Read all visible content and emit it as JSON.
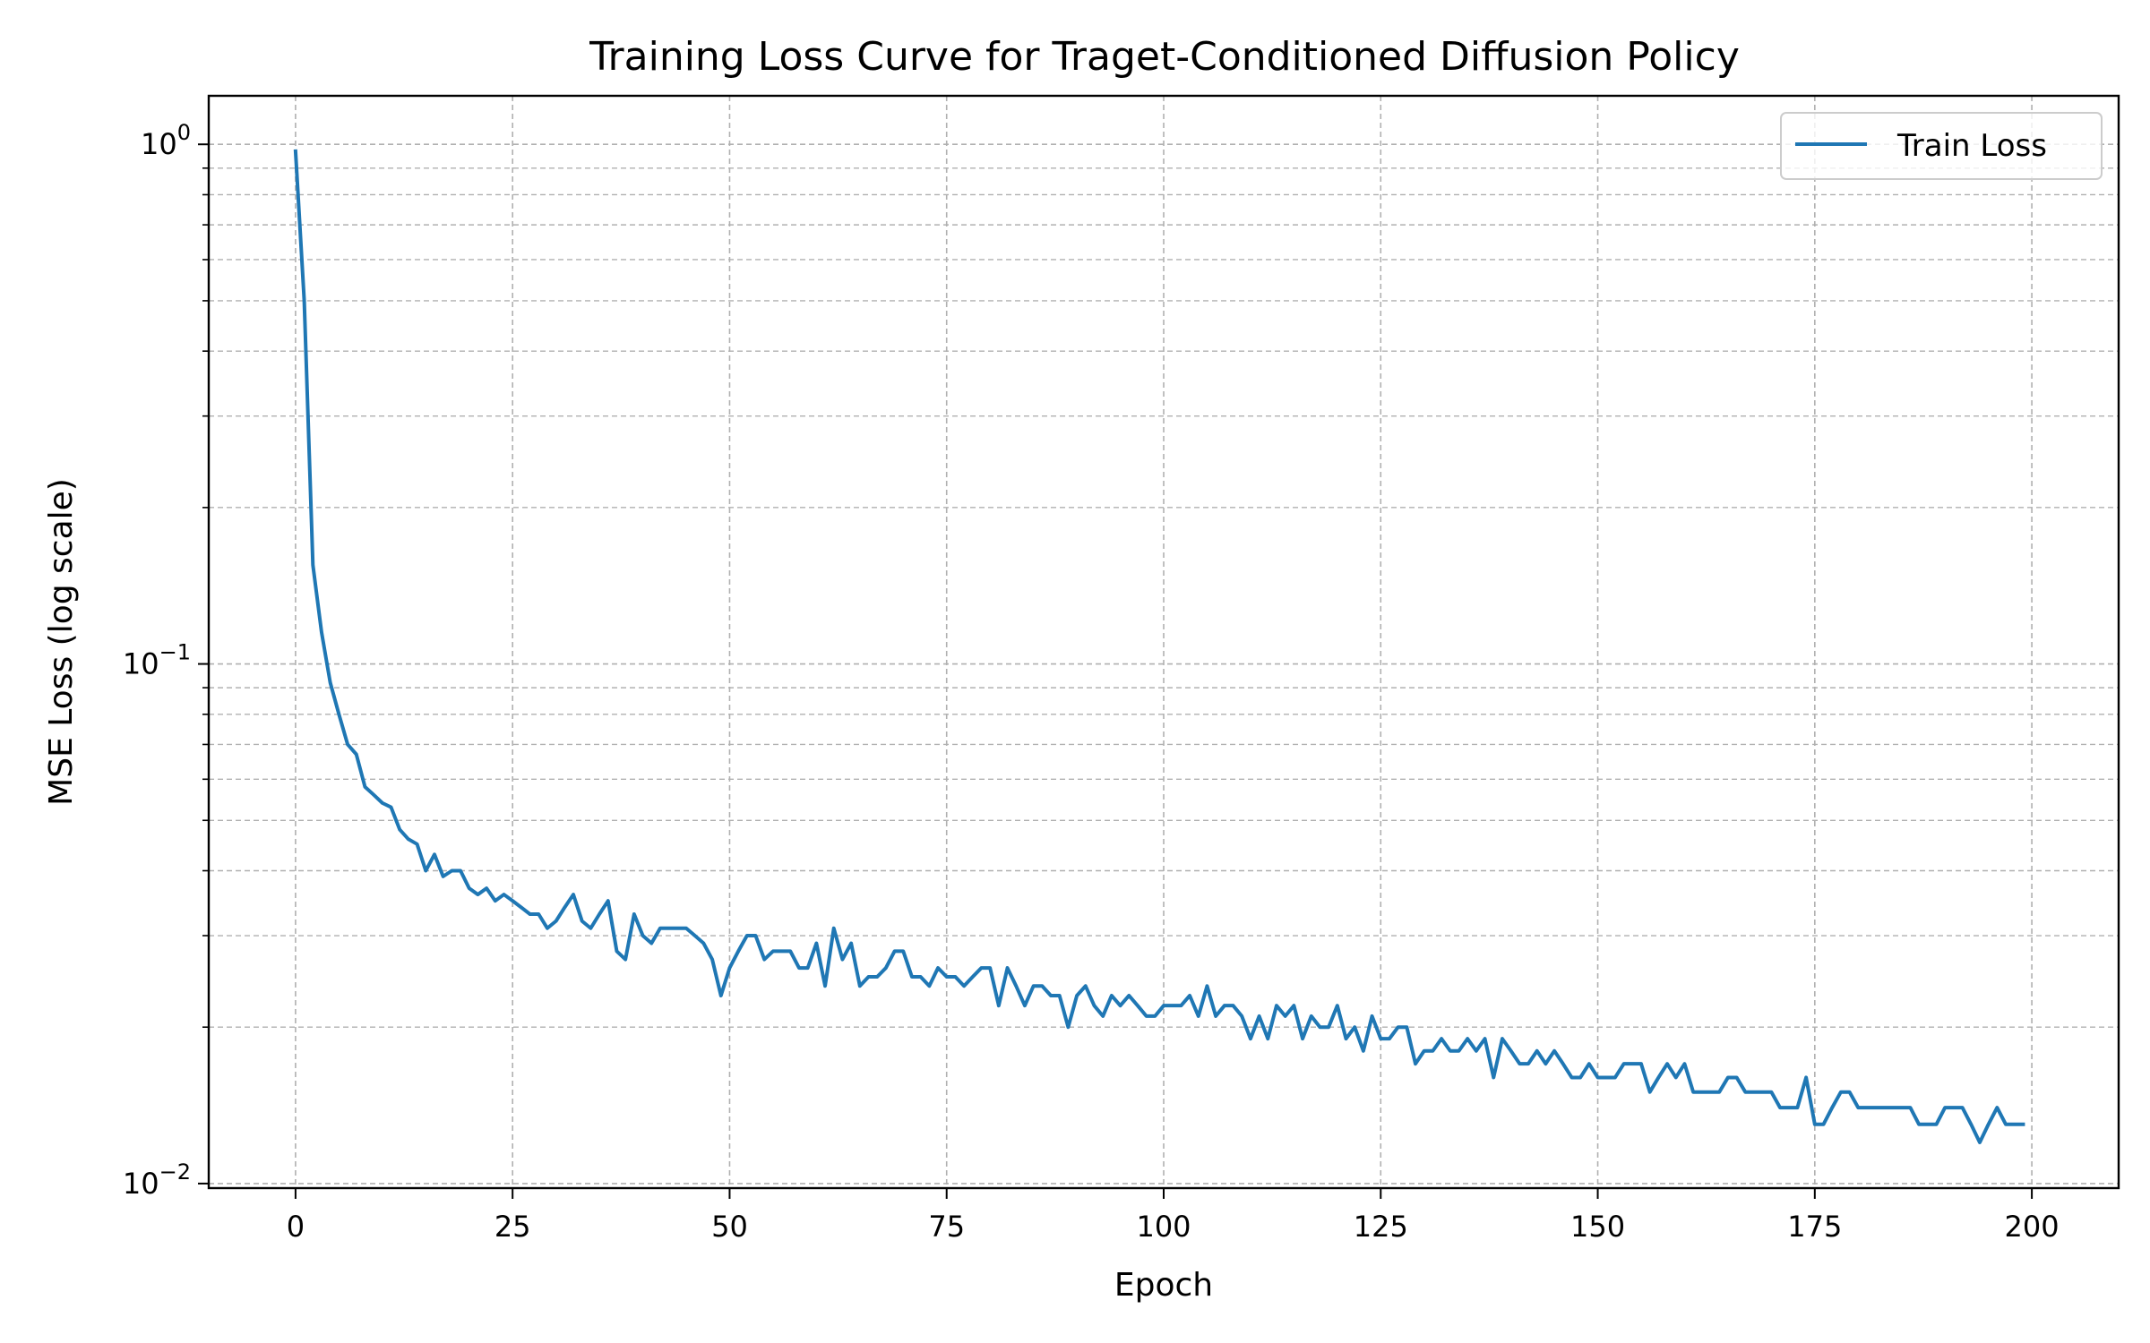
{
  "chart_data": {
    "type": "line",
    "title": "Training Loss Curve for Traget-Conditioned Diffusion Policy",
    "xlabel": "Epoch",
    "ylabel": "MSE Loss (log scale)",
    "xlim": [
      -10,
      210
    ],
    "ylim": [
      0.0098,
      1.24
    ],
    "yscale": "log",
    "grid": true,
    "grid_minor": true,
    "legend_position": "top-right",
    "x_ticks": [
      0,
      25,
      50,
      75,
      100,
      125,
      150,
      175,
      200
    ],
    "x_tick_labels": [
      "0",
      "25",
      "50",
      "75",
      "100",
      "125",
      "150",
      "175",
      "200"
    ],
    "y_ticks": [
      {
        "value": 1,
        "base": "10",
        "exp": "0"
      },
      {
        "value": 0.1,
        "base": "10",
        "exp": "−1"
      },
      {
        "value": 0.01,
        "base": "10",
        "exp": "−2"
      }
    ],
    "series": [
      {
        "name": "Train Loss",
        "color": "#1f77b4",
        "x_start": 0,
        "x_step": 1,
        "values": [
          0.97,
          0.5,
          0.155,
          0.115,
          0.092,
          0.08,
          0.07,
          0.067,
          0.058,
          0.056,
          0.054,
          0.053,
          0.048,
          0.046,
          0.045,
          0.04,
          0.043,
          0.039,
          0.04,
          0.04,
          0.037,
          0.036,
          0.037,
          0.035,
          0.036,
          0.035,
          0.034,
          0.033,
          0.033,
          0.031,
          0.032,
          0.034,
          0.036,
          0.032,
          0.031,
          0.033,
          0.035,
          0.028,
          0.027,
          0.033,
          0.03,
          0.029,
          0.031,
          0.031,
          0.031,
          0.031,
          0.03,
          0.029,
          0.027,
          0.023,
          0.026,
          0.028,
          0.03,
          0.03,
          0.027,
          0.028,
          0.028,
          0.028,
          0.026,
          0.026,
          0.029,
          0.024,
          0.031,
          0.027,
          0.029,
          0.024,
          0.025,
          0.025,
          0.026,
          0.028,
          0.028,
          0.025,
          0.025,
          0.024,
          0.026,
          0.025,
          0.025,
          0.024,
          0.025,
          0.026,
          0.026,
          0.022,
          0.026,
          0.024,
          0.022,
          0.024,
          0.024,
          0.023,
          0.023,
          0.02,
          0.023,
          0.024,
          0.022,
          0.021,
          0.023,
          0.022,
          0.023,
          0.022,
          0.021,
          0.021,
          0.022,
          0.022,
          0.022,
          0.023,
          0.021,
          0.024,
          0.021,
          0.022,
          0.022,
          0.021,
          0.019,
          0.021,
          0.019,
          0.022,
          0.021,
          0.022,
          0.019,
          0.021,
          0.02,
          0.02,
          0.022,
          0.019,
          0.02,
          0.018,
          0.021,
          0.019,
          0.019,
          0.02,
          0.02,
          0.017,
          0.018,
          0.018,
          0.019,
          0.018,
          0.018,
          0.019,
          0.018,
          0.019,
          0.016,
          0.019,
          0.018,
          0.017,
          0.017,
          0.018,
          0.017,
          0.018,
          0.017,
          0.016,
          0.016,
          0.017,
          0.016,
          0.016,
          0.016,
          0.017,
          0.017,
          0.017,
          0.015,
          0.016,
          0.017,
          0.016,
          0.017,
          0.015,
          0.015,
          0.015,
          0.015,
          0.016,
          0.016,
          0.015,
          0.015,
          0.015,
          0.015,
          0.014,
          0.014,
          0.014,
          0.016,
          0.013,
          0.013,
          0.014,
          0.015,
          0.015,
          0.014,
          0.014,
          0.014,
          0.014,
          0.014,
          0.014,
          0.014,
          0.013,
          0.013,
          0.013,
          0.014,
          0.014,
          0.014,
          0.013,
          0.012,
          0.013,
          0.014,
          0.013,
          0.013,
          0.013
        ]
      }
    ]
  }
}
